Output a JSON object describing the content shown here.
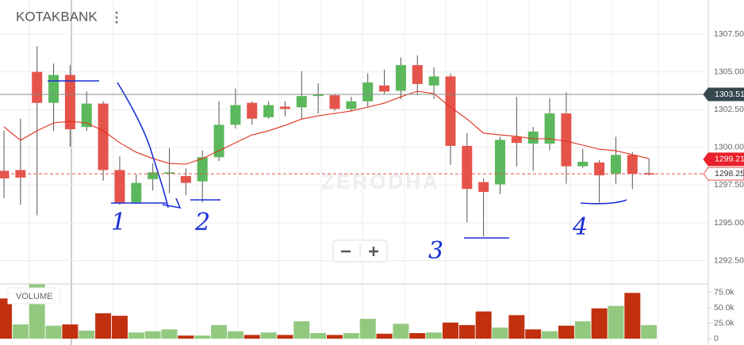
{
  "chart_data": {
    "type": "candlestick",
    "title": "KOTAKBANK",
    "watermark": "ZERODHA",
    "open": [
      1298.45,
      1298.5,
      1305.0,
      1302.95,
      1304.8,
      1301.35,
      1302.9,
      1298.5,
      1296.35,
      1297.9,
      1298.25,
      1298.1,
      1297.75,
      1299.35,
      1301.5,
      1302.95,
      1302.0,
      1302.7,
      1302.65,
      1303.4,
      1303.45,
      1302.55,
      1303.05,
      1304.1,
      1303.75,
      1305.45,
      1304.1,
      1304.7,
      1300.1,
      1297.7,
      1297.55,
      1300.7,
      1300.25,
      1300.25,
      1302.25,
      1298.75,
      1299.0,
      1298.25,
      1299.5,
      1298.3
    ],
    "high": [
      1301.1,
      1301.9,
      1306.7,
      1305.55,
      1305.45,
      1303.7,
      1303.05,
      1299.4,
      1298.2,
      1298.95,
      1299.95,
      1298.6,
      1299.8,
      1303.05,
      1303.9,
      1303.05,
      1303.05,
      1303.05,
      1305.05,
      1304.25,
      1303.55,
      1303.35,
      1304.9,
      1305.15,
      1305.95,
      1306.1,
      1305.3,
      1304.9,
      1300.95,
      1297.95,
      1300.7,
      1303.35,
      1301.35,
      1303.25,
      1303.65,
      1299.9,
      1299.15,
      1300.7,
      1299.7,
      1299.25
    ],
    "low": [
      1296.65,
      1296.2,
      1295.5,
      1301.1,
      1300.05,
      1301.1,
      1297.8,
      1296.2,
      1296.25,
      1297.15,
      1296.95,
      1296.85,
      1296.35,
      1299.1,
      1301.25,
      1301.5,
      1301.9,
      1302.05,
      1301.9,
      1302.25,
      1302.4,
      1302.4,
      1302.65,
      1303.55,
      1303.2,
      1303.45,
      1303.2,
      1298.85,
      1295.05,
      1294.1,
      1296.9,
      1298.75,
      1298.45,
      1299.8,
      1297.6,
      1298.65,
      1296.35,
      1297.6,
      1297.25,
      1298.15
    ],
    "close": [
      1297.95,
      1298.0,
      1302.95,
      1304.8,
      1301.2,
      1302.9,
      1298.5,
      1296.35,
      1297.65,
      1298.35,
      1298.35,
      1297.65,
      1299.35,
      1301.5,
      1302.8,
      1301.9,
      1302.8,
      1302.55,
      1303.4,
      1303.5,
      1302.55,
      1303.05,
      1304.3,
      1303.7,
      1305.45,
      1304.2,
      1304.7,
      1300.1,
      1297.25,
      1297.05,
      1300.5,
      1300.3,
      1301.05,
      1302.25,
      1298.75,
      1299.05,
      1298.15,
      1299.5,
      1298.25,
      1298.2
    ],
    "up_color": "#5cb85c",
    "down_color": "#e5544b",
    "wick_color": "#555555",
    "ylim": [
      1290.96,
      1309.76
    ],
    "yticks": [
      {
        "value": 1292.5,
        "label": "1292.50"
      },
      {
        "value": 1295,
        "label": "1295.00"
      },
      {
        "value": 1297.5,
        "label": "1297.50"
      },
      {
        "value": 1300,
        "label": "1300.00"
      },
      {
        "value": 1302.5,
        "label": "1302.50"
      },
      {
        "value": 1305,
        "label": "1305.00"
      },
      {
        "value": 1307.5,
        "label": "1307.50"
      }
    ],
    "grid": true,
    "moving_average": {
      "color": "#e0301e",
      "values": [
        1301.36,
        1300.47,
        1301.1,
        1301.62,
        1301.73,
        1301.62,
        1301.1,
        1300.31,
        1299.68,
        1299.26,
        1298.94,
        1298.89,
        1299.26,
        1299.78,
        1300.31,
        1300.83,
        1301.1,
        1301.46,
        1301.88,
        1302.09,
        1302.25,
        1302.41,
        1302.67,
        1302.93,
        1303.35,
        1303.72,
        1303.56,
        1302.67,
        1301.88,
        1300.94,
        1300.83,
        1300.73,
        1300.57,
        1300.57,
        1300.41,
        1300.15,
        1299.88,
        1299.78,
        1299.52,
        1299.26
      ]
    },
    "price_lines": [
      {
        "value": 1303.51,
        "label": "1303.51",
        "color": "#37474f",
        "style": "solid"
      },
      {
        "value": 1299.21,
        "label": "1299.21",
        "color": "#e8202a",
        "style": "none"
      },
      {
        "value": 1298.25,
        "label": "1298.25",
        "color": "#e5544b",
        "style": "dashed"
      }
    ],
    "volume": {
      "label": "VOLUME",
      "values": [
        65000,
        23000,
        88000,
        21000,
        23000,
        13000,
        41000,
        37000,
        10000,
        12000,
        15000,
        5000,
        5000,
        22000,
        12000,
        6000,
        10000,
        6000,
        28000,
        9000,
        6000,
        9000,
        32000,
        8000,
        24000,
        9000,
        10000,
        26000,
        22000,
        44000,
        18000,
        38000,
        15000,
        12000,
        21000,
        28000,
        49000,
        53000,
        74000,
        22000
      ],
      "colors": [
        "#c1310f",
        "#93c97f",
        "#93c97f",
        "#93c97f",
        "#c1310f",
        "#93c97f",
        "#c1310f",
        "#c1310f",
        "#93c97f",
        "#93c97f",
        "#93c97f",
        "#c1310f",
        "#93c97f",
        "#93c97f",
        "#93c97f",
        "#c1310f",
        "#93c97f",
        "#c1310f",
        "#93c97f",
        "#93c97f",
        "#c1310f",
        "#93c97f",
        "#93c97f",
        "#c1310f",
        "#93c97f",
        "#c1310f",
        "#93c97f",
        "#c1310f",
        "#c1310f",
        "#c1310f",
        "#93c97f",
        "#c1310f",
        "#c1310f",
        "#93c97f",
        "#c1310f",
        "#93c97f",
        "#c1310f",
        "#93c97f",
        "#c1310f",
        "#93c97f"
      ],
      "ylim": [
        0,
        88500
      ],
      "yticks": [
        0,
        {
          "value": 25000,
          "label": "25.0k"
        },
        {
          "value": 50000,
          "label": "50.0k"
        },
        {
          "value": 75000,
          "label": "75.0k"
        }
      ]
    },
    "annotations": [
      "1",
      "2",
      "3",
      "4"
    ]
  }
}
